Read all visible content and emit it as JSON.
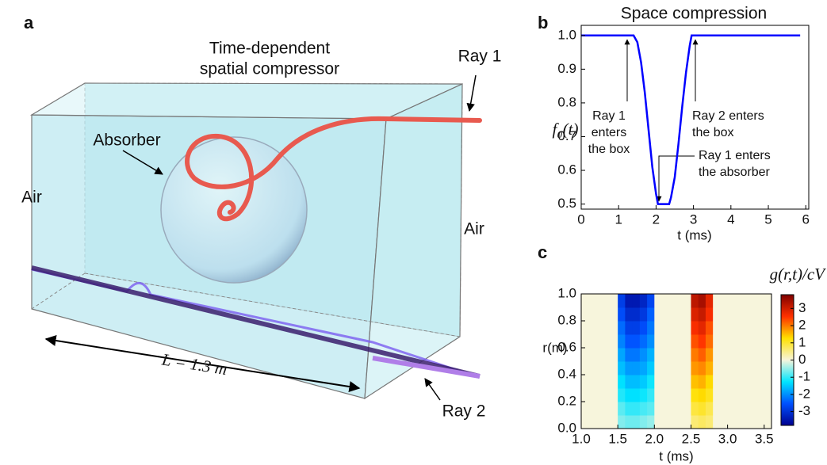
{
  "panel_a": {
    "letter": "a",
    "title": [
      "Time-dependent",
      "spatial compressor"
    ],
    "ray1": "Ray 1",
    "absorber": "Absorber",
    "air_left": "Air",
    "air_right": "Air",
    "length": "L = 1.3 m",
    "ray2": "Ray 2"
  },
  "chart_data": [
    {
      "type": "line",
      "letter": "b",
      "title": "Space compression",
      "xlabel": "t (ms)",
      "ylabel": "f₀(t)",
      "x": [
        0,
        1.4,
        1.5,
        1.6,
        1.7,
        1.8,
        1.9,
        2.0,
        2.05,
        2.35,
        2.4,
        2.5,
        2.6,
        2.7,
        2.8,
        2.9,
        2.95,
        5.85
      ],
      "series": [
        {
          "color": "#0000ff",
          "values": [
            1.0,
            1.0,
            0.98,
            0.92,
            0.83,
            0.72,
            0.61,
            0.53,
            0.5,
            0.5,
            0.52,
            0.58,
            0.68,
            0.79,
            0.89,
            0.97,
            1.0,
            1.0
          ]
        }
      ],
      "xlim": [
        0,
        6.08
      ],
      "ylim": [
        0.485,
        1.03
      ],
      "xticks": [
        0,
        1,
        2,
        3,
        4,
        5,
        6
      ],
      "yticks": [
        0.5,
        0.6,
        0.7,
        0.8,
        0.9,
        {
          "value": 1,
          "label": "1.0"
        }
      ],
      "annotations": [
        {
          "text": [
            "Ray 1",
            "enters",
            "the box"
          ]
        },
        {
          "text": [
            "Ray 2 enters",
            "the box"
          ]
        },
        {
          "text": [
            "Ray 1 enters",
            "the absorber"
          ]
        }
      ]
    },
    {
      "type": "heatmap",
      "letter": "c",
      "xlabel": "t (ms)",
      "ylabel": "r(m)",
      "colorbar_label": "g(r,t)/cV",
      "x_edges": [
        1.0,
        1.5,
        1.6,
        1.7,
        1.8,
        1.9,
        2.0,
        2.5,
        2.6,
        2.7,
        2.8,
        3.6
      ],
      "y_edges": [
        0,
        0.1,
        0.2,
        0.3,
        0.4,
        0.5,
        0.6,
        0.7,
        0.8,
        0.9,
        1.0
      ],
      "z": [
        [
          0,
          -0.6,
          -0.7,
          -0.7,
          -0.6,
          -0.5,
          0,
          0.6,
          0.7,
          0.6,
          0
        ],
        [
          0,
          -0.8,
          -1.0,
          -1.0,
          -0.9,
          -0.8,
          0,
          0.9,
          1.0,
          0.8,
          0
        ],
        [
          0,
          -1.1,
          -1.3,
          -1.3,
          -1.2,
          -1.0,
          0,
          1.2,
          1.3,
          1.1,
          0
        ],
        [
          0,
          -1.3,
          -1.6,
          -1.6,
          -1.5,
          -1.2,
          0,
          1.5,
          1.6,
          1.3,
          0
        ],
        [
          0,
          -1.6,
          -1.9,
          -1.9,
          -1.8,
          -1.5,
          0,
          1.8,
          1.9,
          1.6,
          0
        ],
        [
          0,
          -1.8,
          -2.2,
          -2.2,
          -2.0,
          -1.7,
          0,
          2.0,
          2.2,
          1.8,
          0
        ],
        [
          0,
          -2.1,
          -2.5,
          -2.5,
          -2.3,
          -2.0,
          0,
          2.3,
          2.5,
          2.1,
          0
        ],
        [
          0,
          -2.3,
          -2.8,
          -2.8,
          -2.6,
          -2.2,
          0,
          2.6,
          2.8,
          2.3,
          0
        ],
        [
          0,
          -2.6,
          -3.1,
          -3.1,
          -2.9,
          -2.4,
          0,
          2.9,
          3.1,
          2.6,
          0
        ],
        [
          0,
          -2.8,
          -3.4,
          -3.4,
          -3.2,
          -2.7,
          0,
          3.2,
          3.4,
          2.8,
          0
        ]
      ],
      "xlim": [
        1.0,
        3.6
      ],
      "ylim": [
        0,
        1
      ],
      "zlim": [
        -3.8,
        3.8
      ],
      "xticks": [
        {
          "value": 1,
          "label": "1.0"
        },
        1.5,
        {
          "value": 2,
          "label": "2.0"
        },
        2.5,
        {
          "value": 3,
          "label": "3.0"
        },
        3.5
      ],
      "yticks": [
        {
          "value": 0,
          "label": "0.0"
        },
        0.2,
        0.4,
        0.6,
        0.8,
        {
          "value": 1,
          "label": "1.0"
        }
      ],
      "cticks": [
        -3,
        -2,
        -1,
        0,
        1,
        2,
        3
      ],
      "colormap": [
        "#00008f",
        "#0050ff",
        "#00e5ff",
        "#f7f5dc",
        "#ffe000",
        "#ff3000",
        "#7f0000"
      ]
    }
  ]
}
